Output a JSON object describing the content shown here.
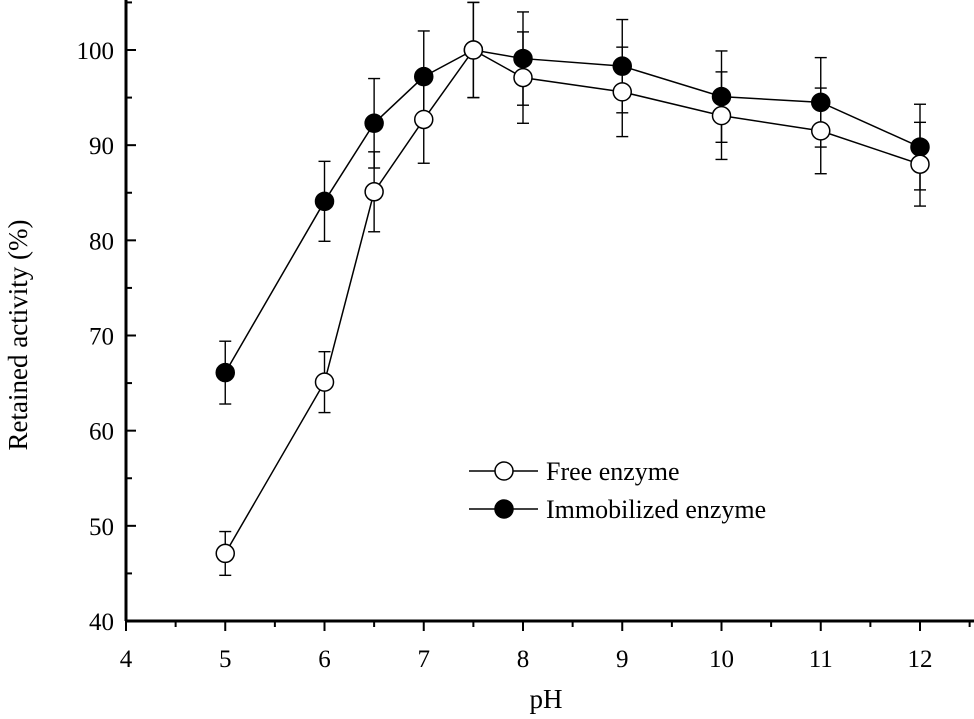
{
  "chart_data": {
    "type": "line",
    "xlabel": "pH",
    "ylabel": "Retained activity (%)",
    "xlim": [
      4,
      12.5
    ],
    "ylim": [
      40,
      105
    ],
    "x_ticks": [
      4,
      5,
      6,
      7,
      8,
      9,
      10,
      11,
      12
    ],
    "y_ticks": [
      40,
      50,
      60,
      70,
      80,
      90,
      100
    ],
    "legend_position": "lower-right",
    "grid": false,
    "series": [
      {
        "name": "Free enzyme",
        "marker": "open-circle",
        "x": [
          5,
          6,
          6.5,
          7,
          7.5,
          8,
          9,
          10,
          11,
          12
        ],
        "y": [
          47.1,
          65.1,
          85.1,
          92.7,
          100.0,
          97.1,
          95.6,
          93.1,
          91.5,
          88.0
        ],
        "error": [
          2.3,
          3.2,
          4.2,
          4.6,
          5.0,
          4.8,
          4.7,
          4.6,
          4.5,
          4.4
        ]
      },
      {
        "name": "Immobilized enzyme",
        "marker": "filled-circle",
        "x": [
          5,
          6,
          6.5,
          7,
          7.5,
          8,
          9,
          10,
          11,
          12
        ],
        "y": [
          66.1,
          84.1,
          92.3,
          97.2,
          100.0,
          99.1,
          98.3,
          95.1,
          94.5,
          89.8
        ],
        "error": [
          3.3,
          4.2,
          4.7,
          4.8,
          5.0,
          4.9,
          4.9,
          4.8,
          4.7,
          4.5
        ]
      }
    ]
  },
  "colors": {
    "axis": "#000000",
    "open_marker_fill": "#ffffff",
    "filled_marker_fill": "#000000"
  }
}
